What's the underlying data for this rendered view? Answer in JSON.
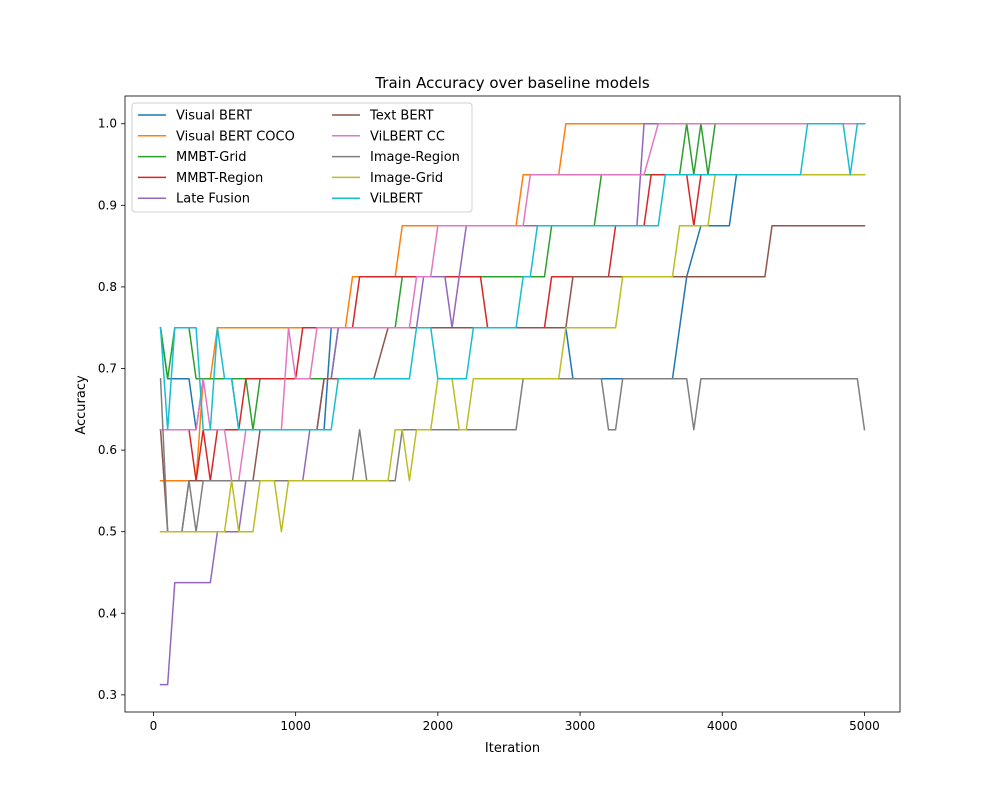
{
  "chart_data": {
    "type": "line",
    "title": "Train Accuracy over baseline models",
    "xlabel": "Iteration",
    "ylabel": "Accuracy",
    "xlim": [
      -200,
      5250
    ],
    "ylim": [
      0.279,
      1.034
    ],
    "xticks": [
      0,
      1000,
      2000,
      3000,
      4000,
      5000
    ],
    "yticks": [
      0.3,
      0.4,
      0.5,
      0.6,
      0.7,
      0.8,
      0.9,
      1.0
    ],
    "ytick_labels": [
      "0.3",
      "0.4",
      "0.5",
      "0.6",
      "0.7",
      "0.8",
      "0.9",
      "1.0"
    ],
    "grid": false,
    "legend": {
      "placement": "top-left",
      "columns": 2
    },
    "series": [
      {
        "name": "Visual BERT",
        "color": "#1f77b4",
        "points": [
          [
            50,
            0.75
          ],
          [
            100,
            0.6875
          ],
          [
            250,
            0.6875
          ],
          [
            300,
            0.625
          ],
          [
            350,
            0.6875
          ],
          [
            550,
            0.6875
          ],
          [
            600,
            0.625
          ],
          [
            1200,
            0.625
          ],
          [
            1250,
            0.75
          ],
          [
            2850,
            0.75
          ],
          [
            2900,
            0.75
          ],
          [
            2950,
            0.6875
          ],
          [
            3650,
            0.6875
          ],
          [
            3750,
            0.8125
          ],
          [
            3850,
            0.875
          ],
          [
            4050,
            0.875
          ],
          [
            4100,
            0.9375
          ],
          [
            5000,
            0.9375
          ]
        ]
      },
      {
        "name": "Visual BERT COCO",
        "color": "#ff7f0e",
        "points": [
          [
            50,
            0.5625
          ],
          [
            250,
            0.5625
          ],
          [
            300,
            0.5625
          ],
          [
            350,
            0.6875
          ],
          [
            400,
            0.6875
          ],
          [
            450,
            0.75
          ],
          [
            1350,
            0.75
          ],
          [
            1400,
            0.8125
          ],
          [
            1700,
            0.8125
          ],
          [
            1750,
            0.875
          ],
          [
            2550,
            0.875
          ],
          [
            2600,
            0.9375
          ],
          [
            2850,
            0.9375
          ],
          [
            2900,
            1.0
          ],
          [
            5000,
            1.0
          ]
        ]
      },
      {
        "name": "MMBT-Grid",
        "color": "#2ca02c",
        "points": [
          [
            50,
            0.75
          ],
          [
            100,
            0.6875
          ],
          [
            150,
            0.75
          ],
          [
            250,
            0.75
          ],
          [
            300,
            0.6875
          ],
          [
            650,
            0.6875
          ],
          [
            700,
            0.625
          ],
          [
            750,
            0.6875
          ],
          [
            1250,
            0.6875
          ],
          [
            1300,
            0.75
          ],
          [
            1700,
            0.75
          ],
          [
            1750,
            0.8125
          ],
          [
            2750,
            0.8125
          ],
          [
            2800,
            0.875
          ],
          [
            3100,
            0.875
          ],
          [
            3150,
            0.9375
          ],
          [
            3700,
            0.9375
          ],
          [
            3750,
            1.0
          ],
          [
            3800,
            0.9375
          ],
          [
            3850,
            1.0
          ],
          [
            3900,
            0.9375
          ],
          [
            3950,
            1.0
          ],
          [
            5000,
            1.0
          ]
        ]
      },
      {
        "name": "MMBT-Region",
        "color": "#d62728",
        "points": [
          [
            50,
            0.625
          ],
          [
            250,
            0.625
          ],
          [
            300,
            0.5625
          ],
          [
            350,
            0.625
          ],
          [
            400,
            0.5625
          ],
          [
            450,
            0.625
          ],
          [
            600,
            0.625
          ],
          [
            650,
            0.6875
          ],
          [
            1000,
            0.6875
          ],
          [
            1050,
            0.75
          ],
          [
            1400,
            0.75
          ],
          [
            1450,
            0.8125
          ],
          [
            2300,
            0.8125
          ],
          [
            2350,
            0.75
          ],
          [
            2750,
            0.75
          ],
          [
            2800,
            0.8125
          ],
          [
            3200,
            0.8125
          ],
          [
            3250,
            0.875
          ],
          [
            3450,
            0.875
          ],
          [
            3500,
            0.9375
          ],
          [
            3750,
            0.9375
          ],
          [
            3800,
            0.875
          ],
          [
            3850,
            0.9375
          ],
          [
            5000,
            0.9375
          ]
        ]
      },
      {
        "name": "Late Fusion",
        "color": "#9467bd",
        "points": [
          [
            50,
            0.3125
          ],
          [
            100,
            0.3125
          ],
          [
            150,
            0.4375
          ],
          [
            400,
            0.4375
          ],
          [
            450,
            0.5
          ],
          [
            600,
            0.5
          ],
          [
            650,
            0.5625
          ],
          [
            1050,
            0.5625
          ],
          [
            1100,
            0.625
          ],
          [
            1150,
            0.625
          ],
          [
            1200,
            0.6875
          ],
          [
            1250,
            0.6875
          ],
          [
            1300,
            0.75
          ],
          [
            1850,
            0.75
          ],
          [
            1900,
            0.8125
          ],
          [
            2050,
            0.8125
          ],
          [
            2100,
            0.75
          ],
          [
            2150,
            0.8125
          ],
          [
            2200,
            0.875
          ],
          [
            3400,
            0.875
          ],
          [
            3450,
            1.0
          ],
          [
            5000,
            1.0
          ]
        ]
      },
      {
        "name": "Text BERT",
        "color": "#8c564b",
        "points": [
          [
            50,
            0.625
          ],
          [
            100,
            0.5
          ],
          [
            200,
            0.5
          ],
          [
            250,
            0.5625
          ],
          [
            700,
            0.5625
          ],
          [
            750,
            0.625
          ],
          [
            1150,
            0.625
          ],
          [
            1200,
            0.6875
          ],
          [
            1550,
            0.6875
          ],
          [
            1650,
            0.75
          ],
          [
            2900,
            0.75
          ],
          [
            2950,
            0.8125
          ],
          [
            4300,
            0.8125
          ],
          [
            4350,
            0.875
          ],
          [
            5000,
            0.875
          ]
        ]
      },
      {
        "name": "ViLBERT CC",
        "color": "#e377c2",
        "points": [
          [
            50,
            0.625
          ],
          [
            300,
            0.625
          ],
          [
            350,
            0.6875
          ],
          [
            400,
            0.625
          ],
          [
            500,
            0.625
          ],
          [
            550,
            0.5625
          ],
          [
            600,
            0.5625
          ],
          [
            650,
            0.625
          ],
          [
            900,
            0.625
          ],
          [
            950,
            0.75
          ],
          [
            1000,
            0.6875
          ],
          [
            1100,
            0.6875
          ],
          [
            1150,
            0.75
          ],
          [
            1800,
            0.75
          ],
          [
            1850,
            0.8125
          ],
          [
            1950,
            0.8125
          ],
          [
            2000,
            0.875
          ],
          [
            2600,
            0.875
          ],
          [
            2650,
            0.9375
          ],
          [
            3450,
            0.9375
          ],
          [
            3550,
            1.0
          ],
          [
            5000,
            1.0
          ]
        ]
      },
      {
        "name": "Image-Region",
        "color": "#7f7f7f",
        "points": [
          [
            50,
            0.6875
          ],
          [
            100,
            0.5
          ],
          [
            150,
            0.5
          ],
          [
            200,
            0.5
          ],
          [
            250,
            0.5625
          ],
          [
            300,
            0.5
          ],
          [
            350,
            0.5625
          ],
          [
            1400,
            0.5625
          ],
          [
            1450,
            0.625
          ],
          [
            1500,
            0.5625
          ],
          [
            1700,
            0.5625
          ],
          [
            1750,
            0.625
          ],
          [
            2550,
            0.625
          ],
          [
            2600,
            0.6875
          ],
          [
            3150,
            0.6875
          ],
          [
            3200,
            0.625
          ],
          [
            3250,
            0.625
          ],
          [
            3300,
            0.6875
          ],
          [
            3750,
            0.6875
          ],
          [
            3800,
            0.625
          ],
          [
            3850,
            0.6875
          ],
          [
            4950,
            0.6875
          ],
          [
            5000,
            0.625
          ]
        ]
      },
      {
        "name": "Image-Grid",
        "color": "#bcbd22",
        "points": [
          [
            50,
            0.5
          ],
          [
            500,
            0.5
          ],
          [
            550,
            0.5625
          ],
          [
            600,
            0.5
          ],
          [
            700,
            0.5
          ],
          [
            750,
            0.5625
          ],
          [
            850,
            0.5625
          ],
          [
            900,
            0.5
          ],
          [
            950,
            0.5625
          ],
          [
            1650,
            0.5625
          ],
          [
            1700,
            0.625
          ],
          [
            1750,
            0.625
          ],
          [
            1800,
            0.5625
          ],
          [
            1850,
            0.625
          ],
          [
            1950,
            0.625
          ],
          [
            2000,
            0.6875
          ],
          [
            2100,
            0.6875
          ],
          [
            2150,
            0.625
          ],
          [
            2200,
            0.625
          ],
          [
            2250,
            0.6875
          ],
          [
            2850,
            0.6875
          ],
          [
            2900,
            0.75
          ],
          [
            3250,
            0.75
          ],
          [
            3300,
            0.8125
          ],
          [
            3650,
            0.8125
          ],
          [
            3700,
            0.875
          ],
          [
            3900,
            0.875
          ],
          [
            3950,
            0.9375
          ],
          [
            5000,
            0.9375
          ]
        ]
      },
      {
        "name": "ViLBERT",
        "color": "#17becf",
        "points": [
          [
            50,
            0.75
          ],
          [
            100,
            0.625
          ],
          [
            150,
            0.75
          ],
          [
            300,
            0.75
          ],
          [
            350,
            0.625
          ],
          [
            400,
            0.625
          ],
          [
            450,
            0.75
          ],
          [
            500,
            0.6875
          ],
          [
            550,
            0.6875
          ],
          [
            600,
            0.625
          ],
          [
            1250,
            0.625
          ],
          [
            1300,
            0.6875
          ],
          [
            1800,
            0.6875
          ],
          [
            1850,
            0.75
          ],
          [
            1950,
            0.75
          ],
          [
            2000,
            0.6875
          ],
          [
            2200,
            0.6875
          ],
          [
            2250,
            0.75
          ],
          [
            2550,
            0.75
          ],
          [
            2600,
            0.8125
          ],
          [
            2650,
            0.8125
          ],
          [
            2700,
            0.875
          ],
          [
            3550,
            0.875
          ],
          [
            3600,
            0.9375
          ],
          [
            4550,
            0.9375
          ],
          [
            4600,
            1.0
          ],
          [
            4850,
            1.0
          ],
          [
            4900,
            0.9375
          ],
          [
            4950,
            1.0
          ],
          [
            5000,
            1.0
          ]
        ]
      }
    ]
  }
}
